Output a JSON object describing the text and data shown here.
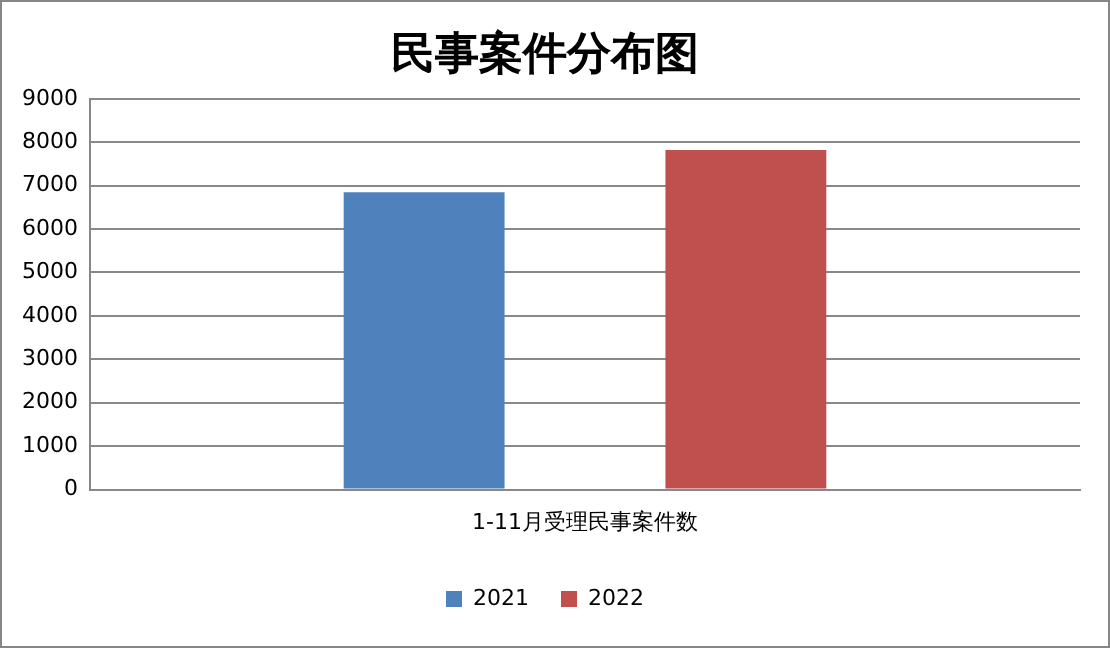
{
  "chart_data": {
    "type": "bar",
    "title": "民事案件分布图",
    "categories": [
      "1-11月受理民事案件数"
    ],
    "series": [
      {
        "name": "2021",
        "color": "#4f81bd",
        "values": [
          6850
        ]
      },
      {
        "name": "2022",
        "color": "#c0504d",
        "values": [
          7820
        ]
      }
    ],
    "ylim": [
      0,
      9000
    ],
    "yticks": [
      0,
      1000,
      2000,
      3000,
      4000,
      5000,
      6000,
      7000,
      8000,
      9000
    ],
    "grid": "y",
    "legend": "bottom"
  }
}
